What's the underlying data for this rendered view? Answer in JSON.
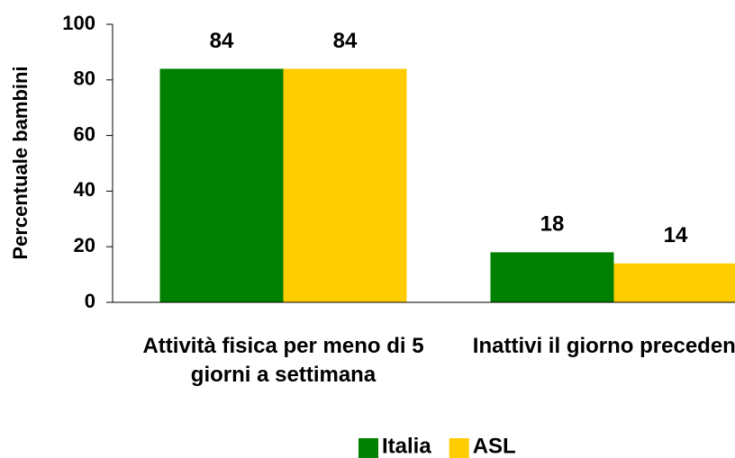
{
  "chart_data": {
    "type": "bar",
    "y_label": "Percentuale bambini",
    "categories": [
      "Attività fisica per meno di 5 giorni a settimana",
      "Inattivi il giorno precedente"
    ],
    "series": [
      {
        "name": "Italia",
        "color": "#008000",
        "values": [
          84,
          18
        ]
      },
      {
        "name": "ASL",
        "color": "#ffcc00",
        "values": [
          84,
          14
        ]
      }
    ],
    "ylim": [
      0,
      100
    ],
    "yticks": [
      0,
      20,
      40,
      60,
      80,
      100
    ],
    "grid": false,
    "legend": "bottom"
  }
}
